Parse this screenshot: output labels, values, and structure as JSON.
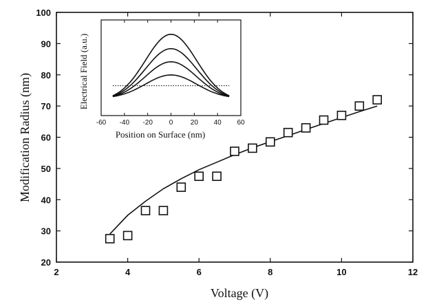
{
  "chart_data": [
    {
      "type": "scatter",
      "xlabel": "Voltage (V)",
      "ylabel": "Modification Radius (nm)",
      "xlim": [
        2,
        12
      ],
      "ylim": [
        20,
        100
      ],
      "x_ticks": [
        "2",
        "4",
        "6",
        "8",
        "10",
        "12"
      ],
      "y_ticks": [
        "20",
        "30",
        "40",
        "50",
        "60",
        "70",
        "80",
        "90",
        "100"
      ],
      "series": [
        {
          "marker": "open-square",
          "x": [
            3.5,
            4.0,
            4.5,
            5.0,
            5.5,
            6.0,
            6.5,
            7.0,
            7.5,
            8.0,
            8.5,
            9.0,
            9.5,
            10.0,
            10.5,
            11.0
          ],
          "y": [
            27.5,
            28.5,
            36.5,
            36.5,
            44,
            47.5,
            47.5,
            55.5,
            56.5,
            58.5,
            61.5,
            63,
            65.5,
            67,
            70,
            72
          ]
        },
        {
          "line": "solid",
          "x": [
            3.5,
            4.0,
            4.5,
            5.0,
            5.5,
            6.0,
            6.5,
            7.0,
            7.5,
            8.0,
            8.5,
            9.0,
            9.5,
            10.0,
            10.5,
            11.0
          ],
          "y": [
            29.0,
            35.0,
            39.5,
            43.5,
            46.7,
            49.6,
            52.0,
            54.4,
            56.6,
            58.6,
            60.5,
            62.5,
            64.4,
            66.3,
            68.2,
            70.0
          ]
        }
      ],
      "grid": false
    },
    {
      "type": "line",
      "placement": "inset-top-left",
      "xlabel": "Position on Surface (nm)",
      "ylabel": "Electrical Field (a.u.)",
      "xlim": [
        -60,
        60
      ],
      "x_ticks": [
        "-60",
        "-40",
        "-20",
        "0",
        "20",
        "40",
        "60"
      ],
      "x_range": [
        -50,
        50
      ],
      "series": [
        {
          "peak": 94,
          "base": 66.2,
          "width": 22
        },
        {
          "peak": 88,
          "base": 66.5,
          "width": 22
        },
        {
          "peak": 82.5,
          "base": 66.8,
          "width": 22
        },
        {
          "peak": 77,
          "base": 67.2,
          "width": 22
        }
      ],
      "reference_line": {
        "y": 72.5,
        "style": "dotted"
      }
    }
  ]
}
